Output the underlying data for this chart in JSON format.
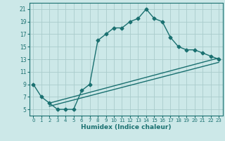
{
  "xlabel": "Humidex (Indice chaleur)",
  "ylabel": "",
  "bg_color": "#cce8e8",
  "grid_color": "#aacccc",
  "line_color": "#1a7070",
  "xlim": [
    -0.5,
    23.5
  ],
  "ylim": [
    4,
    22
  ],
  "xticks": [
    0,
    1,
    2,
    3,
    4,
    5,
    6,
    7,
    8,
    9,
    10,
    11,
    12,
    13,
    14,
    15,
    16,
    17,
    18,
    19,
    20,
    21,
    22,
    23
  ],
  "yticks": [
    5,
    7,
    9,
    11,
    13,
    15,
    17,
    19,
    21
  ],
  "line1_x": [
    0,
    1,
    2,
    3,
    4,
    5,
    6,
    7,
    8,
    9,
    10,
    11,
    12,
    13,
    14,
    15,
    16,
    17,
    18,
    19,
    20,
    21,
    22,
    23
  ],
  "line1_y": [
    9,
    7,
    6,
    5,
    5,
    5,
    8,
    9,
    16,
    17,
    18,
    18,
    19,
    19.5,
    21,
    19.5,
    19,
    16.5,
    15,
    14.5,
    14.5,
    14,
    13.5,
    13
  ],
  "line2_x": [
    2,
    23
  ],
  "line2_y": [
    6,
    13.2
  ],
  "line3_x": [
    2,
    23
  ],
  "line3_y": [
    5.5,
    12.5
  ],
  "marker": "D",
  "markersize": 2.5,
  "linewidth": 1.0
}
